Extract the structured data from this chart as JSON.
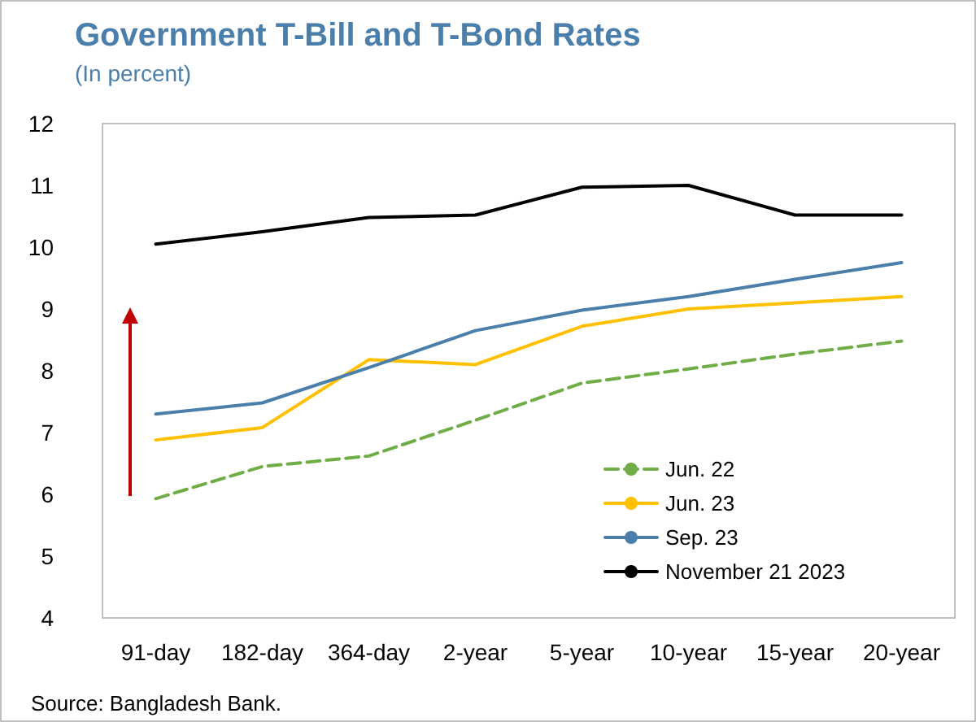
{
  "chart_data": {
    "type": "line",
    "title": "Government T-Bill and T-Bond Rates",
    "subtitle": "(In percent)",
    "categories": [
      "91-day",
      "182-day",
      "364-day",
      "2-year",
      "5-year",
      "10-year",
      "15-year",
      "20-year"
    ],
    "series": [
      {
        "name": "Jun. 22",
        "color": "#70ad47",
        "line_style": "dashed",
        "values": [
          5.93,
          6.45,
          6.62,
          7.2,
          7.8,
          8.03,
          8.27,
          8.48
        ]
      },
      {
        "name": "Jun. 23",
        "color": "#ffc000",
        "values": [
          6.88,
          7.08,
          8.18,
          8.1,
          8.72,
          9.0,
          9.1,
          9.2
        ]
      },
      {
        "name": "Sep. 23",
        "color": "#4a7eab",
        "values": [
          7.3,
          7.48,
          8.05,
          8.65,
          8.98,
          9.2,
          9.48,
          9.75
        ]
      },
      {
        "name": "November 21 2023",
        "color": "#000000",
        "values": [
          10.05,
          10.25,
          10.48,
          10.52,
          10.97,
          11.0,
          10.52,
          10.52
        ]
      }
    ],
    "ylim": [
      4,
      12
    ],
    "yticks": [
      4,
      5,
      6,
      7,
      8,
      9,
      10,
      11,
      12
    ],
    "grid": false,
    "legend": "bottom right",
    "marker": "none",
    "line_style": "solid",
    "annotations": [
      "Source: Bangladesh Bank."
    ]
  }
}
